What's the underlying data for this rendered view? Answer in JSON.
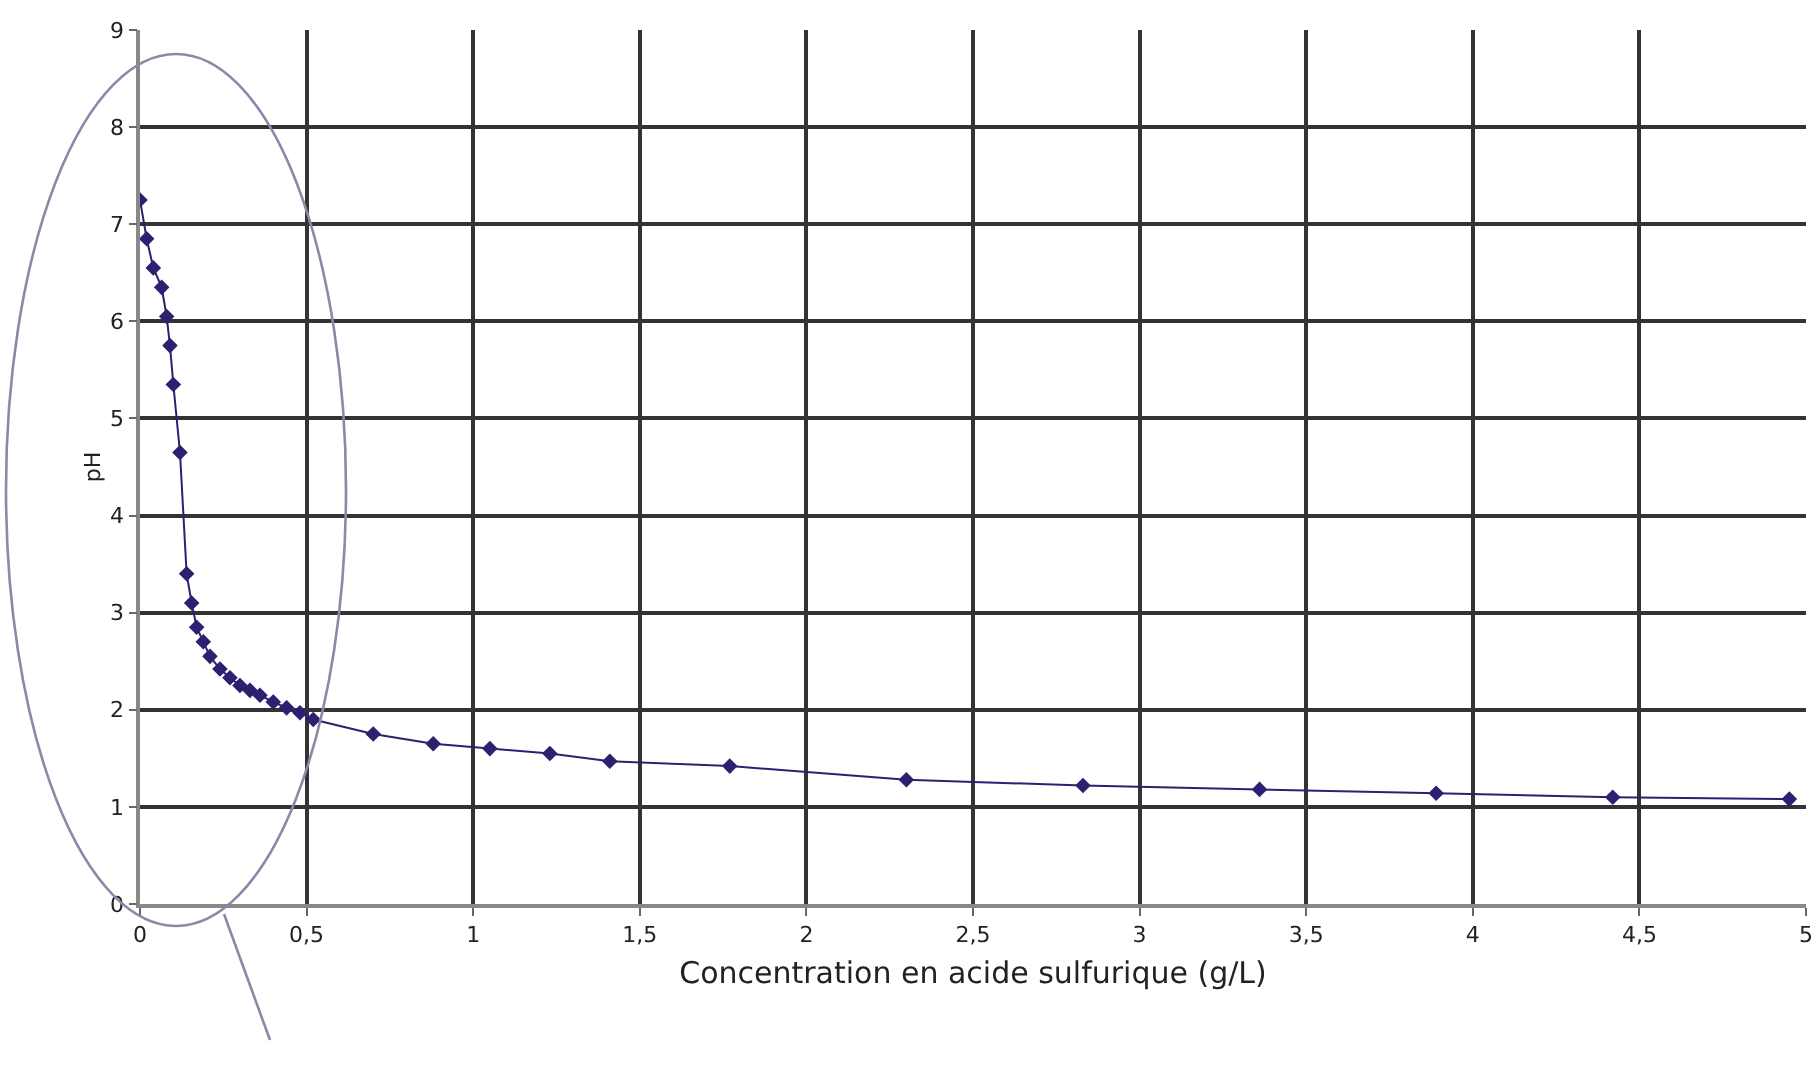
{
  "chart_data": {
    "type": "line",
    "xlabel": "Concentration en acide sulfurique (g/L)",
    "ylabel": "pH",
    "x": [
      0,
      0.02,
      0.04,
      0.065,
      0.08,
      0.09,
      0.1,
      0.12,
      0.14,
      0.155,
      0.17,
      0.19,
      0.21,
      0.24,
      0.27,
      0.3,
      0.33,
      0.36,
      0.4,
      0.44,
      0.48,
      0.52,
      0.7,
      0.88,
      1.05,
      1.23,
      1.41,
      1.77,
      2.3,
      2.83,
      3.36,
      3.89,
      4.42,
      4.95
    ],
    "series": [
      {
        "color": "#2b2170",
        "values": [
          7.25,
          6.85,
          6.55,
          6.35,
          6.05,
          5.75,
          5.35,
          4.65,
          3.4,
          3.1,
          2.85,
          2.7,
          2.55,
          2.42,
          2.33,
          2.25,
          2.2,
          2.15,
          2.08,
          2.02,
          1.97,
          1.9,
          1.75,
          1.65,
          1.6,
          1.55,
          1.47,
          1.42,
          1.28,
          1.22,
          1.18,
          1.14,
          1.1,
          1.08
        ]
      }
    ],
    "xlim": [
      0,
      5
    ],
    "xticks": [
      0,
      {
        "value": 0.5,
        "label": "0,5"
      },
      1,
      {
        "value": 1.5,
        "label": "1,5"
      },
      2,
      {
        "value": 2.5,
        "label": "2,5"
      },
      3,
      {
        "value": 3.5,
        "label": "3,5"
      },
      4,
      {
        "value": 4.5,
        "label": "4,5"
      },
      5
    ],
    "ylim": [
      0,
      9
    ],
    "yticks": [
      0,
      1,
      2,
      3,
      4,
      5,
      6,
      7,
      8,
      9
    ],
    "grid": true,
    "marker": "diamond",
    "line_style": "solid"
  }
}
